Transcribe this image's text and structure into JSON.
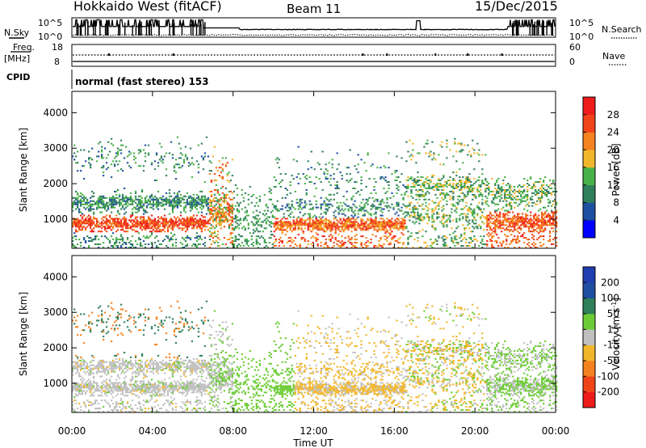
{
  "header": {
    "title": "Hokkaido West (fitACF)",
    "beam": "Beam 11",
    "date": "15/Dec/2015"
  },
  "noise_panel": {
    "left_label": "N.Sky",
    "right_label": "N.Search",
    "top_tick": "10^5",
    "bottom_tick": "10^0"
  },
  "freq_panel": {
    "left_label_1": "Freq.",
    "left_label_2": "[MHz]",
    "left_top_tick": "18",
    "left_bottom_tick": "8",
    "right_label": "Nave",
    "right_top_tick": "60",
    "right_bottom_tick": "0"
  },
  "cpid": {
    "label": "CPID",
    "value": "normal (fast stereo) 153"
  },
  "colors": {
    "power": [
      "#0000ff",
      "#1f4fa0",
      "#2f7f5a",
      "#49b149",
      "#f2b62a",
      "#f4821f",
      "#f04418",
      "#ee1b1b"
    ],
    "velocity": [
      "#ee1b1b",
      "#f04418",
      "#f4821f",
      "#f2b62a",
      "#c0c0c0",
      "#6dcc36",
      "#2f7f5a",
      "#1f4fa0",
      "#1f3fb0"
    ]
  },
  "chart_data": [
    {
      "type": "heatmap",
      "name": "power",
      "ylabel": "Slant Range [km]",
      "yticks": [
        "1000",
        "2000",
        "3000",
        "4000"
      ],
      "ylim": [
        180,
        4600
      ],
      "xticks": [
        "00:00",
        "04:00",
        "08:00",
        "12:00",
        "16:00",
        "20:00",
        "00:00"
      ],
      "colorbar_label": "Power [dB]",
      "colorbar_ticks": [
        "4",
        "8",
        "12",
        "16",
        "20",
        "24",
        "28"
      ],
      "colorbar_range": [
        0,
        32
      ]
    },
    {
      "type": "heatmap",
      "name": "velocity",
      "ylabel": "Slant Range [km]",
      "yticks": [
        "1000",
        "2000",
        "3000",
        "4000"
      ],
      "ylim": [
        180,
        4600
      ],
      "xticks": [
        "00:00",
        "04:00",
        "08:00",
        "12:00",
        "16:00",
        "20:00",
        "00:00"
      ],
      "xlabel": "Time UT",
      "colorbar_label": "Velocity [m s",
      "colorbar_unit_sup": "-1",
      "colorbar_label_end": "]",
      "colorbar_ticks": [
        "-200",
        "-100",
        "-50",
        "-15",
        "15",
        "50",
        "100",
        "200"
      ]
    }
  ]
}
